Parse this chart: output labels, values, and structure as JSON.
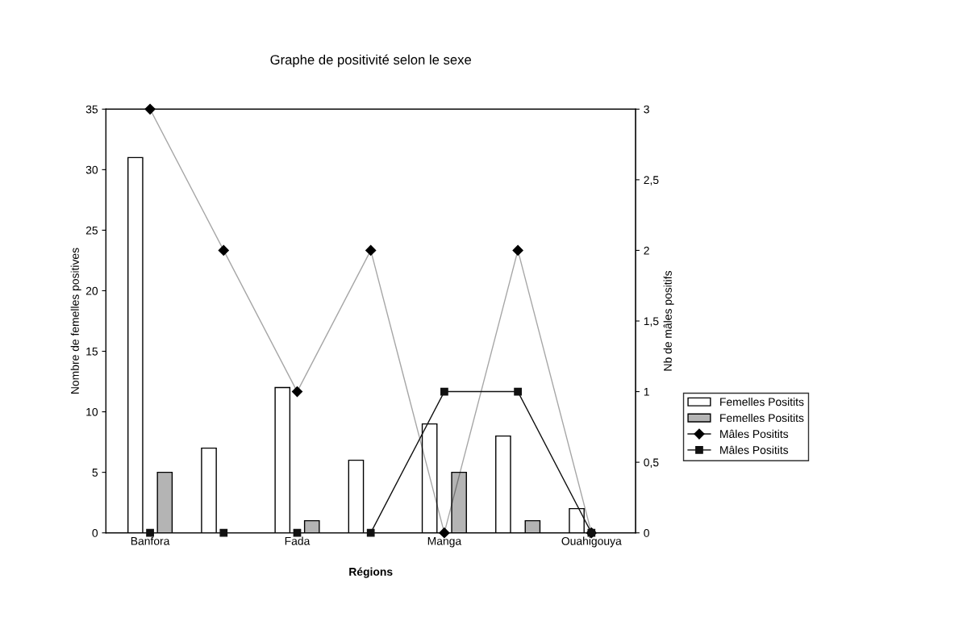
{
  "chart_data": {
    "type": "bar",
    "title": "Graphe de positivité selon le sexe",
    "xlabel": "Régions",
    "ylabel": "Nombre de femelles positives",
    "y2label": "Nb de mâles positifs",
    "categories": [
      "Banfora",
      null,
      "Fada",
      null,
      "Manga",
      null,
      "Ouahigouya"
    ],
    "series": [
      {
        "name": "Femelles Positits",
        "color": "#ffffff",
        "values": [
          31,
          7,
          12,
          6,
          9,
          8,
          2
        ]
      },
      {
        "name": "Femelles Positits",
        "color": "#b4b4b4",
        "values": [
          5,
          0,
          1,
          0,
          5,
          1,
          0
        ]
      },
      {
        "name": "Mâles Positits",
        "type": "line",
        "axis": "y2",
        "marker": "diamond",
        "color": "#000000",
        "values": [
          3,
          2,
          1,
          2,
          0,
          2,
          0
        ]
      },
      {
        "name": "Mâles Positits",
        "type": "line",
        "axis": "y2",
        "marker": "square",
        "color": "#111111",
        "values": [
          0,
          0,
          0,
          0,
          1,
          1,
          0
        ]
      }
    ],
    "ylim": [
      0,
      35
    ],
    "yticks": [
      0,
      5,
      10,
      15,
      20,
      25,
      30,
      35
    ],
    "y2lim": [
      0,
      3
    ],
    "y2ticks": [
      0,
      {
        "value": 0.5,
        "label": "0,5"
      },
      1,
      {
        "value": 1.5,
        "label": "1,5"
      },
      2,
      {
        "value": 2.5,
        "label": "2,5"
      },
      3
    ],
    "grid": false,
    "legend": "right"
  }
}
